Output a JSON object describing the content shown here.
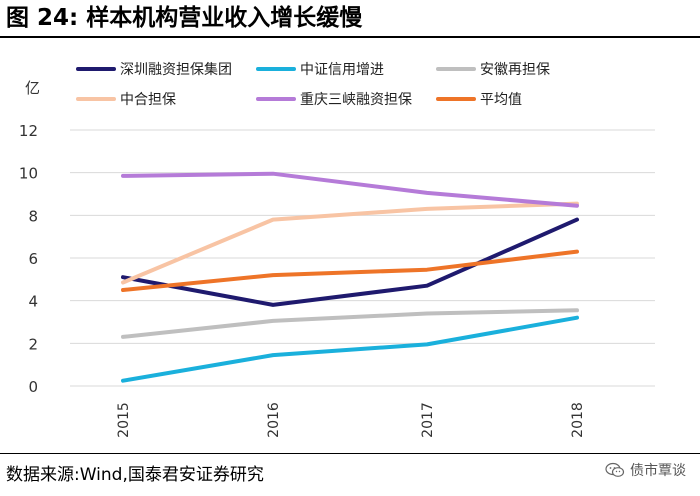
{
  "header": {
    "title": "图 24:  样本机构营业收入增长缓慢"
  },
  "chart_data": {
    "type": "line",
    "title": "",
    "ylabel": "亿",
    "xlabel": "",
    "x": [
      "2015",
      "2016",
      "2017",
      "2018"
    ],
    "ylim": [
      0,
      12
    ],
    "yticks": [
      0,
      2,
      4,
      6,
      8,
      10,
      12
    ],
    "grid": true,
    "legend_position": "top",
    "series": [
      {
        "name": "深圳融资担保集团",
        "color": "#1f1a6e",
        "values": [
          5.1,
          3.8,
          4.7,
          7.8
        ]
      },
      {
        "name": "中证信用增进",
        "color": "#1ab0dc",
        "values": [
          0.25,
          1.45,
          1.95,
          3.2
        ]
      },
      {
        "name": "安徽再担保",
        "color": "#bfbfbf",
        "values": [
          2.3,
          3.05,
          3.4,
          3.55
        ]
      },
      {
        "name": "中合担保",
        "color": "#f8c4a4",
        "values": [
          4.85,
          7.8,
          8.3,
          8.55
        ]
      },
      {
        "name": "重庆三峡融资担保",
        "color": "#b57bd8",
        "values": [
          9.85,
          9.95,
          9.05,
          8.45
        ]
      },
      {
        "name": "平均值",
        "color": "#ee7428",
        "values": [
          4.5,
          5.2,
          5.45,
          6.3
        ]
      }
    ]
  },
  "footer": {
    "source": "数据来源:Wind,国泰君安证券研究",
    "watermark": "债市覃谈",
    "watermark_icon": "wechat-icon"
  }
}
